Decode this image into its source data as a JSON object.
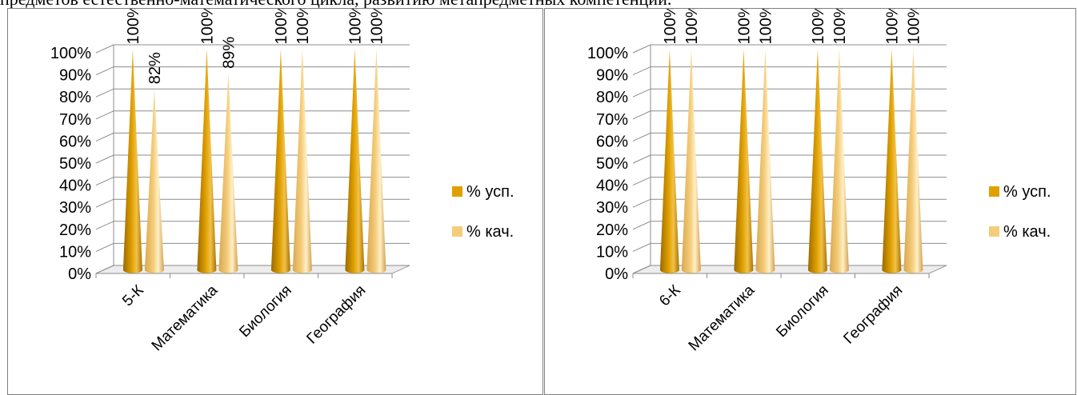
{
  "caption": "предметов естественно-математического цикла, развитию метапредметных компетенций.",
  "colors": {
    "success": "#E0A000",
    "quality": "#F5CD7A"
  },
  "chart_data": [
    {
      "type": "bar",
      "style": "3d-cone",
      "categories": [
        "5-К",
        "Математика",
        "Биология",
        "География"
      ],
      "series": [
        {
          "name": "% усп.",
          "values": [
            100,
            100,
            100,
            100
          ],
          "labels": [
            "100%",
            "100%",
            "100%",
            "100%"
          ]
        },
        {
          "name": "% кач.",
          "values": [
            82,
            89,
            100,
            100
          ],
          "labels": [
            "82%",
            "89%",
            "100%",
            "100%"
          ]
        }
      ],
      "ylim": [
        0,
        100
      ],
      "yticks": [
        "0%",
        "10%",
        "20%",
        "30%",
        "40%",
        "50%",
        "60%",
        "70%",
        "80%",
        "90%",
        "100%"
      ],
      "grid": true,
      "legend": "right"
    },
    {
      "type": "bar",
      "style": "3d-cone",
      "categories": [
        "6-К",
        "Математика",
        "Биология",
        "География"
      ],
      "series": [
        {
          "name": "% усп.",
          "values": [
            100,
            100,
            100,
            100
          ],
          "labels": [
            "100%",
            "100%",
            "100%",
            "100%"
          ]
        },
        {
          "name": "% кач.",
          "values": [
            100,
            100,
            100,
            100
          ],
          "labels": [
            "100%",
            "100%",
            "100%",
            "100%"
          ]
        }
      ],
      "ylim": [
        0,
        100
      ],
      "yticks": [
        "0%",
        "10%",
        "20%",
        "30%",
        "40%",
        "50%",
        "60%",
        "70%",
        "80%",
        "90%",
        "100%"
      ],
      "grid": true,
      "legend": "right"
    }
  ]
}
